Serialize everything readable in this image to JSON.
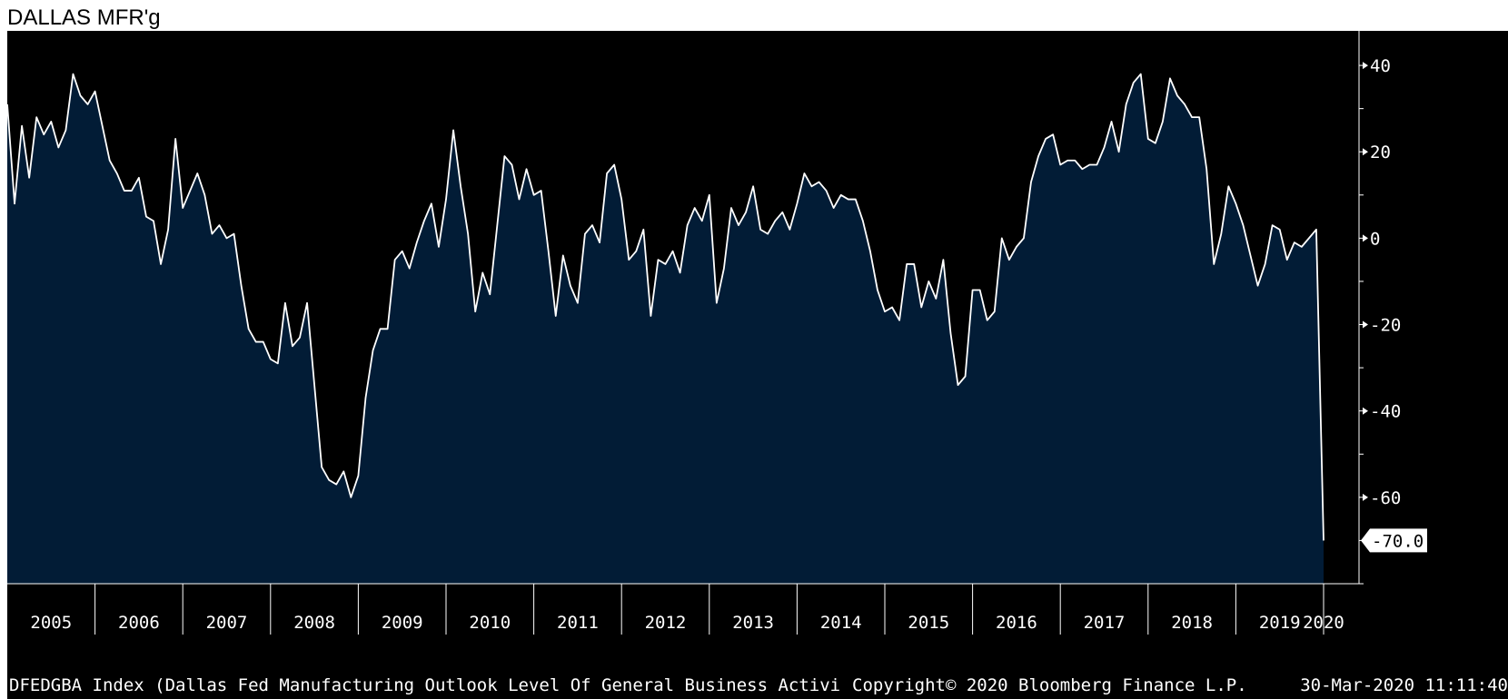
{
  "title": "DALLAS MFR'g",
  "footer": {
    "source": "DFEDGBA Index (Dallas Fed Manufacturing Outlook Level Of General Business Activi",
    "copyright": "Copyright© 2020 Bloomberg Finance L.P.",
    "timestamp": "30-Mar-2020 11:11:40"
  },
  "colors": {
    "background": "#000000",
    "area_fill": "#021c36",
    "line": "#ffffff",
    "text": "#ffffff"
  },
  "chart_data": {
    "type": "area",
    "title": "DALLAS MFR'g",
    "xlabel": "",
    "ylabel": "",
    "ylim": [
      -80,
      48
    ],
    "y_ticks": [
      40,
      20,
      0,
      -20,
      -40,
      -60
    ],
    "x_tick_labels": [
      "2005",
      "2006",
      "2007",
      "2008",
      "2009",
      "2010",
      "2011",
      "2012",
      "2013",
      "2014",
      "2015",
      "2016",
      "2017",
      "2018",
      "2019",
      "2020"
    ],
    "last_value_label": "-70.0",
    "grid": false,
    "series": [
      {
        "values": [
          31,
          8,
          26,
          14,
          28,
          24,
          27,
          21,
          25,
          38,
          33,
          31,
          34,
          26,
          18,
          15,
          11,
          11,
          14,
          5,
          4,
          -6,
          2,
          23,
          7,
          11,
          15,
          10,
          1,
          3,
          0,
          1,
          -11,
          -21,
          -24,
          -24,
          -28,
          -29,
          -15,
          -25,
          -23,
          -15,
          -34,
          -53,
          -56,
          -57,
          -54,
          -60,
          -55,
          -37,
          -26,
          -21,
          -21,
          -5,
          -3,
          -7,
          -1,
          4,
          8,
          -2,
          9,
          25,
          12,
          1,
          -17,
          -8,
          -13,
          3,
          19,
          17,
          9,
          16,
          10,
          11,
          -3,
          -18,
          -4,
          -11,
          -15,
          1,
          3,
          -1,
          15,
          17,
          9,
          -5,
          -3,
          2,
          -18,
          -5,
          -6,
          -3,
          -8,
          3,
          7,
          4,
          10,
          -15,
          -7,
          7,
          3,
          6,
          12,
          2,
          1,
          4,
          6,
          2,
          8,
          15,
          12,
          13,
          11,
          7,
          10,
          9,
          9,
          4,
          -3,
          -12,
          -17,
          -16,
          -19,
          -6,
          -6,
          -16,
          -10,
          -14,
          -5,
          -22,
          -34,
          -32,
          -12,
          -12,
          -19,
          -17,
          0,
          -5,
          -2,
          0,
          13,
          19,
          23,
          24,
          17,
          18,
          18,
          16,
          17,
          17,
          21,
          27,
          20,
          31,
          36,
          38,
          23,
          22,
          27,
          37,
          33,
          31,
          28,
          28,
          16,
          -6,
          1,
          12,
          8,
          3,
          -4,
          -11,
          -6,
          3,
          2,
          -5,
          -1,
          -2,
          0,
          2,
          -70
        ],
        "start": "2005-01",
        "frequency": "monthly"
      }
    ]
  }
}
